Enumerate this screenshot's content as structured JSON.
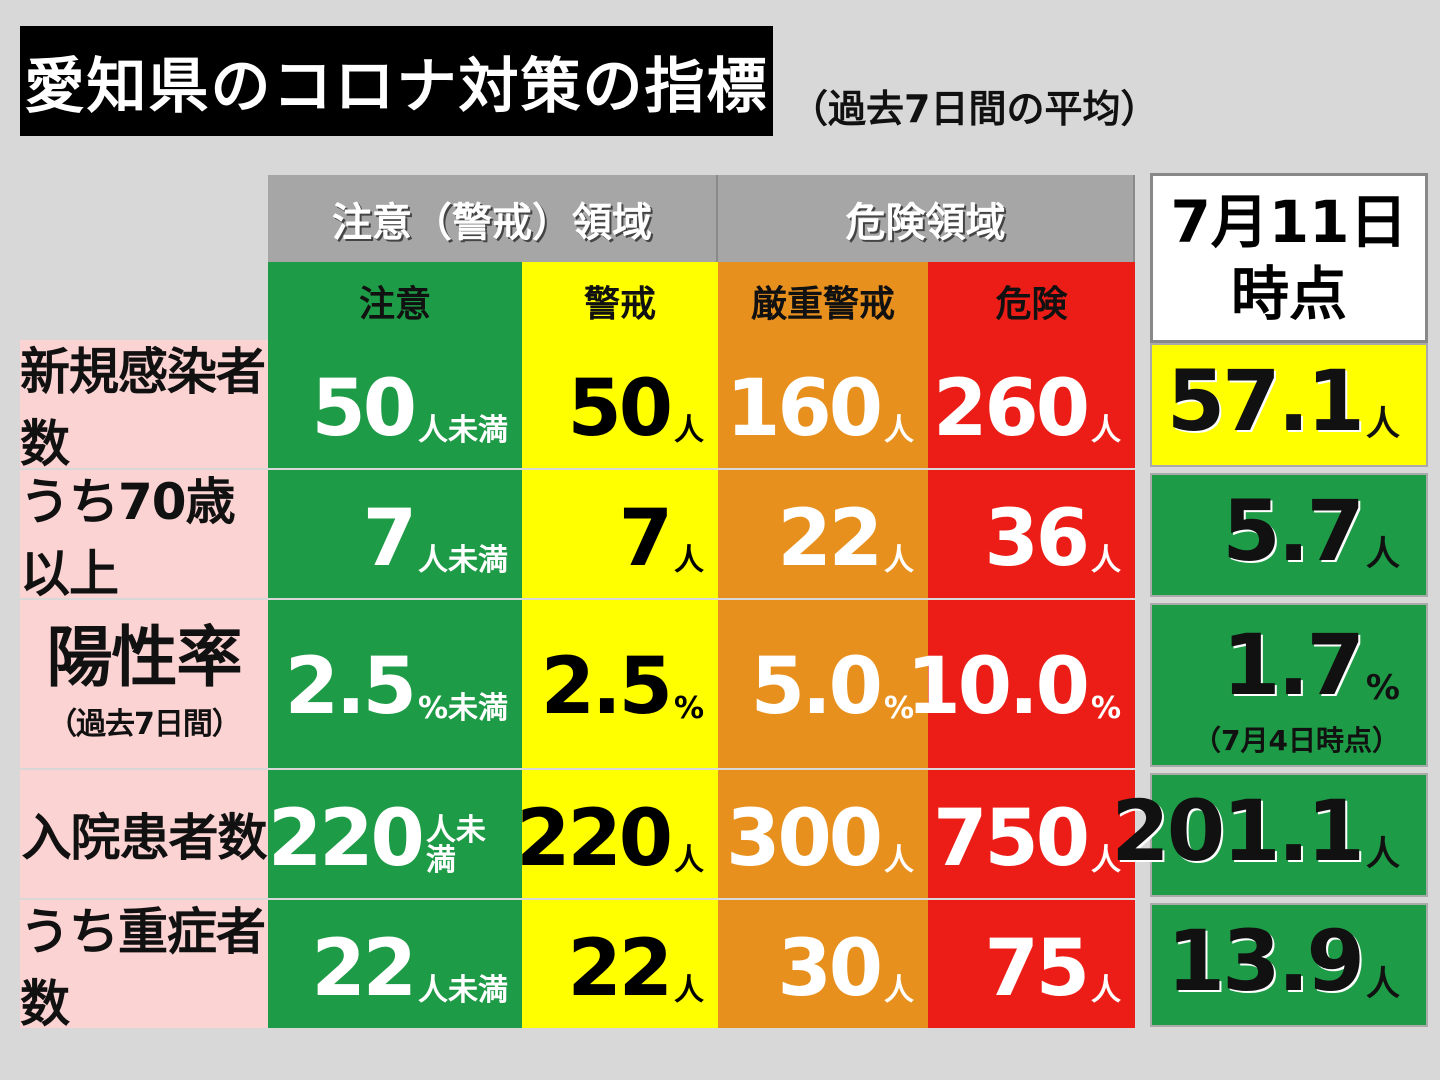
{
  "title": "愛知県のコロナ対策の指標",
  "subtitle": "（過去7日間の平均）",
  "groups": [
    "注意（警戒）領域",
    "危険領域"
  ],
  "levels": [
    "注意",
    "警戒",
    "厳重警戒",
    "危険"
  ],
  "date_header": [
    "7月11日",
    "時点"
  ],
  "rows": [
    {
      "label": "新規感染者数",
      "thresholds": [
        {
          "num": "50",
          "unit": "人未満"
        },
        {
          "num": "50",
          "unit": "人"
        },
        {
          "num": "160",
          "unit": "人"
        },
        {
          "num": "260",
          "unit": "人"
        }
      ],
      "current": {
        "num": "57.1",
        "unit": "人",
        "status": "yellow"
      }
    },
    {
      "label": "うち70歳以上",
      "thresholds": [
        {
          "num": "7",
          "unit": "人未満"
        },
        {
          "num": "7",
          "unit": "人"
        },
        {
          "num": "22",
          "unit": "人"
        },
        {
          "num": "36",
          "unit": "人"
        }
      ],
      "current": {
        "num": "5.7",
        "unit": "人",
        "status": "green"
      }
    },
    {
      "label": "陽性率",
      "sublabel": "（過去7日間）",
      "thresholds": [
        {
          "num": "2.5",
          "unit": "%未満"
        },
        {
          "num": "2.5",
          "unit": "%"
        },
        {
          "num": "5.0",
          "unit": "%"
        },
        {
          "num": "10.0",
          "unit": "%"
        }
      ],
      "current": {
        "num": "1.7",
        "unit": "%",
        "note": "（7月4日時点）",
        "status": "green"
      }
    },
    {
      "label": "入院患者数",
      "thresholds": [
        {
          "num": "220",
          "unit": "人未満"
        },
        {
          "num": "220",
          "unit": "人"
        },
        {
          "num": "300",
          "unit": "人"
        },
        {
          "num": "750",
          "unit": "人"
        }
      ],
      "current": {
        "num": "201.1",
        "unit": "人",
        "status": "green"
      }
    },
    {
      "label": "うち重症者数",
      "thresholds": [
        {
          "num": "22",
          "unit": "人未満"
        },
        {
          "num": "22",
          "unit": "人"
        },
        {
          "num": "30",
          "unit": "人"
        },
        {
          "num": "75",
          "unit": "人"
        }
      ],
      "current": {
        "num": "13.9",
        "unit": "人",
        "status": "green"
      }
    }
  ],
  "colors": {
    "green": "#1e9b46",
    "yellow": "#ffff00",
    "orange": "#e8901e",
    "red": "#ec1d17",
    "label_bg": "#fcd3d3",
    "header_gray": "#a6a6a6"
  }
}
